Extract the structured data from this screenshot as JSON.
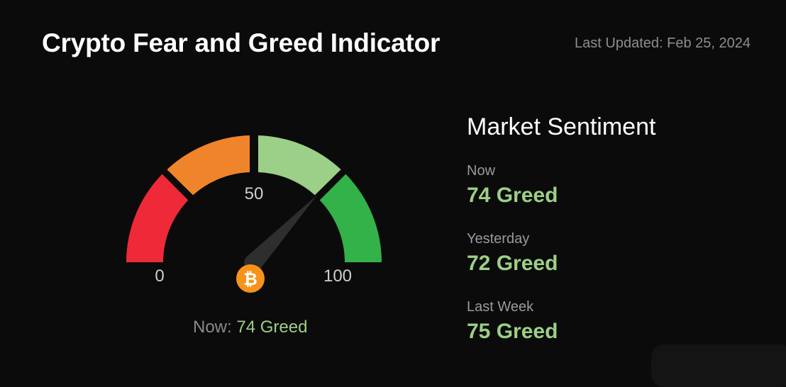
{
  "header": {
    "title": "Crypto Fear and Greed Indicator",
    "last_updated": "Last Updated: Feb 25, 2024"
  },
  "gauge": {
    "value": 74,
    "min_label": "0",
    "mid_label": "50",
    "max_label": "100",
    "center_icon": "bitcoin-icon",
    "bitcoin_symbol": "₿",
    "now_label": "Now:",
    "now_value": "74 Greed",
    "segment_colors": [
      "#ef2a38",
      "#f0842a",
      "#9ccf87",
      "#33b24a"
    ],
    "needle_color": "#2e2e2e",
    "bitcoin_color": "#f7931a"
  },
  "sentiment": {
    "title": "Market Sentiment",
    "items": [
      {
        "label": "Now",
        "value": "74 Greed"
      },
      {
        "label": "Yesterday",
        "value": "72 Greed"
      },
      {
        "label": "Last Week",
        "value": "75 Greed"
      }
    ],
    "value_color": "#9ccf87"
  }
}
